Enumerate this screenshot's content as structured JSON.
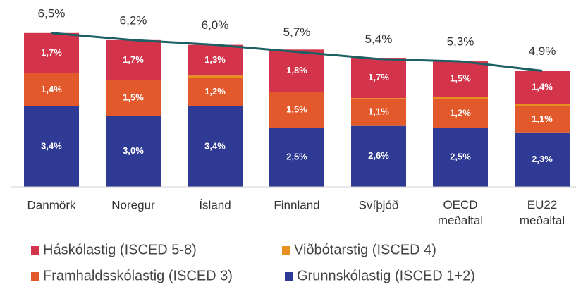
{
  "chart_data": {
    "type": "bar",
    "stacked": true,
    "categories": [
      "Danmörk",
      "Noregur",
      "Ísland",
      "Finnland",
      "Svíþjóð",
      "OECD meðaltal",
      "EU22 meðaltal"
    ],
    "series": [
      {
        "name": "Grunnskólastig (ISCED 1+2)",
        "color": "#2e3a94",
        "values": [
          3.4,
          3.0,
          3.4,
          2.5,
          2.6,
          2.5,
          2.3
        ],
        "value_labels": [
          "3,4%",
          "3,0%",
          "3,4%",
          "2,5%",
          "2,6%",
          "2,5%",
          "2,3%"
        ]
      },
      {
        "name": "Framhaldsskólastig (ISCED 3)",
        "color": "#e2592b",
        "values": [
          1.4,
          1.5,
          1.2,
          1.5,
          1.1,
          1.2,
          1.1
        ],
        "value_labels": [
          "1,4%",
          "1,5%",
          "1,2%",
          "1,5%",
          "1,1%",
          "1,2%",
          "1,1%"
        ]
      },
      {
        "name": "Viðbótarstig (ISCED 4)",
        "color": "#e8901f",
        "values": [
          0,
          0,
          0.1,
          0,
          0.05,
          0.1,
          0.1
        ]
      },
      {
        "name": "Háskólastig (ISCED 5-8)",
        "color": "#d3344b",
        "values": [
          1.7,
          1.7,
          1.3,
          1.8,
          1.7,
          1.5,
          1.4
        ],
        "value_labels": [
          "1,7%",
          "1,7%",
          "1,3%",
          "1,8%",
          "1,7%",
          "1,5%",
          "1,4%"
        ]
      }
    ],
    "total": {
      "type": "line",
      "color": "#1d5f63",
      "values": [
        6.5,
        6.2,
        6.0,
        5.7,
        5.4,
        5.3,
        4.9
      ],
      "value_labels": [
        "6,5%",
        "6,2%",
        "6,0%",
        "5,7%",
        "5,4%",
        "5,3%",
        "4,9%"
      ]
    },
    "ylim": [
      0,
      7
    ]
  }
}
